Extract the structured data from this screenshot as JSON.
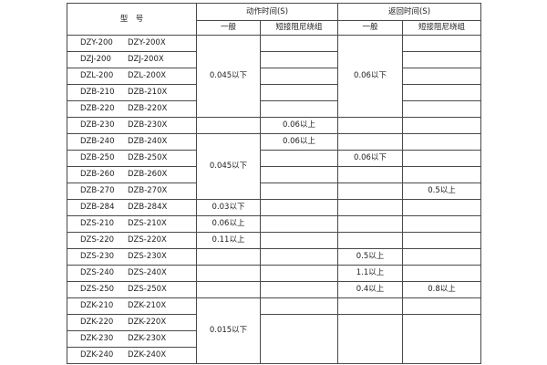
{
  "header": {
    "model": "型　号",
    "action_time": "动作时间(S)",
    "return_time": "返回时间(S)",
    "general": "一般",
    "short_winding": "短接阻尼绕组"
  },
  "rows": [
    {
      "m1": "DZY-200",
      "m2": "DZY-200X"
    },
    {
      "m1": "DZJ-200",
      "m2": "DZJ-200X"
    },
    {
      "m1": "DZL-200",
      "m2": "DZL-200X"
    },
    {
      "m1": "DZB-210",
      "m2": "DZB-210X"
    },
    {
      "m1": "DZB-220",
      "m2": "DZB-220X"
    },
    {
      "m1": "DZB-230",
      "m2": "DZB-230X"
    },
    {
      "m1": "DZB-240",
      "m2": "DZB-240X"
    },
    {
      "m1": "DZB-250",
      "m2": "DZB-250X"
    },
    {
      "m1": "DZB-260",
      "m2": "DZB-260X"
    },
    {
      "m1": "DZB-270",
      "m2": "DZB-270X"
    },
    {
      "m1": "DZB-284",
      "m2": "DZB-284X"
    },
    {
      "m1": "DZS-210",
      "m2": "DZS-210X"
    },
    {
      "m1": "DZS-220",
      "m2": "DZS-220X"
    },
    {
      "m1": "DZS-230",
      "m2": "DZS-230X"
    },
    {
      "m1": "DZS-240",
      "m2": "DZS-240X"
    },
    {
      "m1": "DZS-250",
      "m2": "DZS-250X"
    },
    {
      "m1": "DZK-210",
      "m2": "DZK-210X"
    },
    {
      "m1": "DZK-220",
      "m2": "DZK-220X"
    },
    {
      "m1": "DZK-230",
      "m2": "DZK-230X"
    },
    {
      "m1": "DZK-240",
      "m2": "DZK-240X"
    }
  ],
  "values": {
    "act_gen_a": "0.045以下",
    "act_gen_b": "0.045以下",
    "act_gen_284": "0.03以下",
    "act_gen_s210": "0.06以上",
    "act_gen_s220": "0.11以上",
    "act_gen_k": "0.015以下",
    "act_short_230": "0.06以上",
    "act_short_240": "0.06以上",
    "ret_gen_a": "0.06以下",
    "ret_gen_250": "0.06以下",
    "ret_gen_s230": "0.5以上",
    "ret_gen_s240": "1.1以上",
    "ret_gen_s250": "0.4以上",
    "ret_short_270": "0.5以上",
    "ret_short_s250": "0.8以上"
  }
}
